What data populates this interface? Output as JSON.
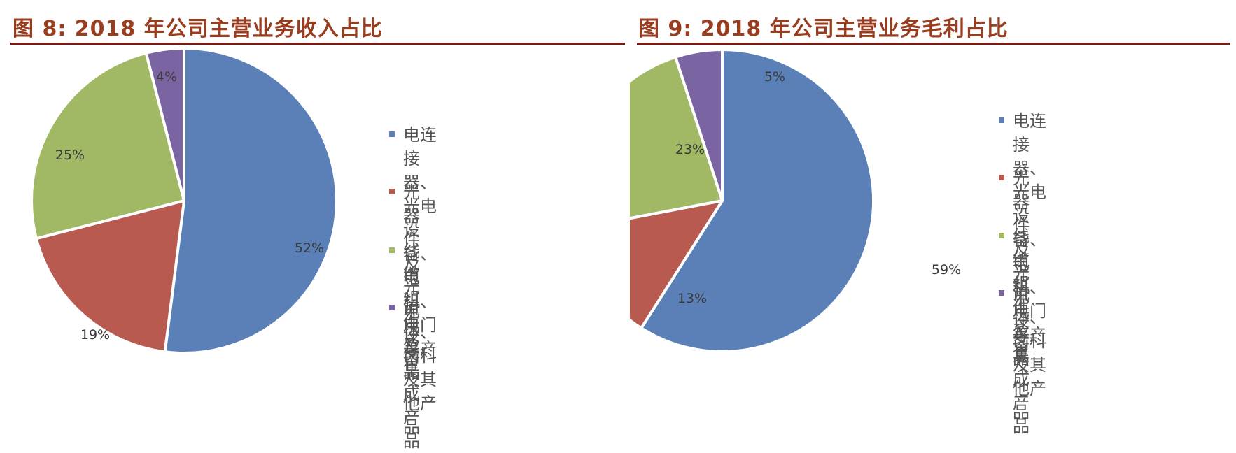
{
  "colors": {
    "title": "#9a3d1f",
    "rule": "#7a1a12",
    "series": [
      "#5b80b8",
      "#b85a50",
      "#a1b965",
      "#7b64a2"
    ],
    "label_text": "#3a3a3a",
    "legend_text": "#555555"
  },
  "legend_labels": [
    "电连接器、光电设备、电机、电门等产品",
    "光器件及光电设备",
    "线缆组件及集成产品",
    "流体、齿科及其他产品"
  ],
  "legend_lines": {
    "item0_line1": "电连接器、光电设备、电",
    "item0_line2": "机、电门等产品",
    "item1": "光器件及光电设备",
    "item2": "线缆组件及集成产品",
    "item3": "流体、齿科及其他产品"
  },
  "figures": [
    {
      "title": "图 8:  2018 年公司主营业务收入占比",
      "labels": [
        "52%",
        "19%",
        "25%",
        "4%"
      ]
    },
    {
      "title": "图 9:  2018 年公司主营业务毛利占比",
      "labels": [
        "59%",
        "13%",
        "23%",
        "5%"
      ]
    }
  ],
  "chart_data": [
    {
      "type": "pie",
      "title": "图 8: 2018 年公司主营业务收入占比",
      "categories": [
        "电连接器、光电设备、电机、电门等产品",
        "光器件及光电设备",
        "线缆组件及集成产品",
        "流体、齿科及其他产品"
      ],
      "values": [
        52,
        19,
        25,
        4
      ],
      "unit": "%",
      "start_angle": "12 o'clock, clockwise",
      "legend_position": "right"
    },
    {
      "type": "pie",
      "title": "图 9: 2018 年公司主营业务毛利占比",
      "categories": [
        "电连接器、光电设备、电机、电门等产品",
        "光器件及光电设备",
        "线缆组件及集成产品",
        "流体、齿科及其他产品"
      ],
      "values": [
        59,
        13,
        23,
        5
      ],
      "unit": "%",
      "start_angle": "12 o'clock, clockwise",
      "legend_position": "right"
    }
  ]
}
